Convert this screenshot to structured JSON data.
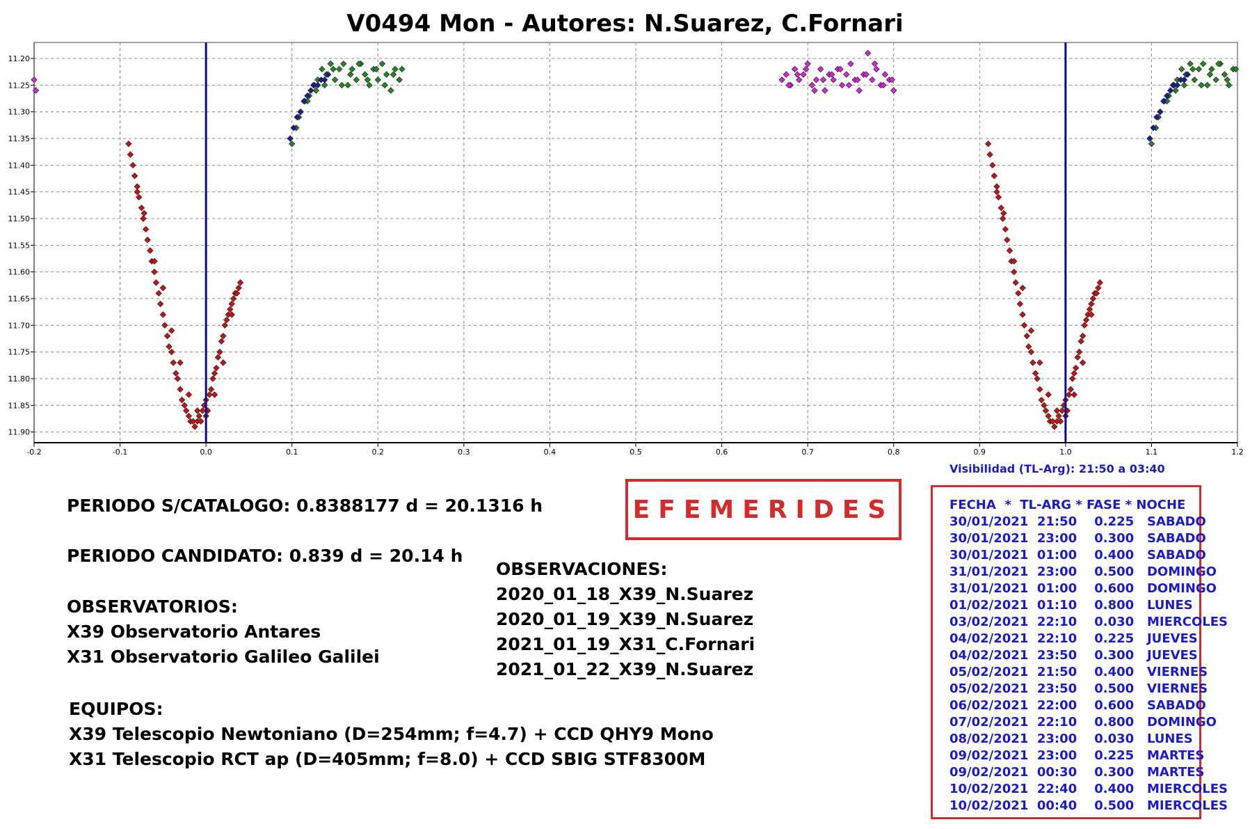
{
  "page": {
    "title": "V0494 Mon - Autores: N.Suarez, C.Fornari",
    "visibility": "Visibilidad (TL-Arg): 21:50 a 03:40",
    "period_catalog": "PERIODO S/CATALOGO: 0.8388177 d = 20.1316 h",
    "period_candidate": "PERIODO CANDIDATO: 0.839 d = 20.14 h",
    "observatories_heading": "OBSERVATORIOS:",
    "observatories": [
      "X39 Observatorio Antares",
      "X31 Observatorio Galileo Galilei"
    ],
    "observations_heading": "OBSERVACIONES:",
    "observations": [
      "2020_01_18_X39_N.Suarez",
      "2020_01_19_X39_N.Suarez",
      "2021_01_19_X31_C.Fornari",
      "2021_01_22_X39_N.Suarez"
    ],
    "equipment_heading": "EQUIPOS:",
    "equipment": [
      "X39 Telescopio Newtoniano (D=254mm; f=4.7) + CCD QHY9 Mono",
      "X31 Telescopio RCT ap (D=405mm; f=8.0) + CCD SBIG STF8300M"
    ],
    "ephemerides_title": "EFEMERIDES",
    "ephemerides_header": "FECHA  *  TL-ARG * FASE * NOCHE",
    "ephemerides": [
      "30/01/2021  21:50    0.225   SABADO",
      "30/01/2021  23:00    0.300   SABADO",
      "30/01/2021  01:00    0.400   SABADO",
      "31/01/2021  23:00    0.500   DOMINGO",
      "31/01/2021  01:00    0.600   DOMINGO",
      "01/02/2021  01:10    0.800   LUNES",
      "03/02/2021  22:10    0.030   MIERCOLES",
      "04/02/2021  22:10    0.225   JUEVES",
      "04/02/2021  23:50    0.300   JUEVES",
      "05/02/2021  21:50    0.400   VIERNES",
      "05/02/2021  23:50    0.500   VIERNES",
      "06/02/2021  22:00    0.600   SABADO",
      "07/02/2021  22:10    0.800   DOMINGO",
      "08/02/2021  23:00    0.030   LUNES",
      "09/02/2021  23:00    0.225   MARTES",
      "09/02/2021  00:30    0.300   MARTES",
      "10/02/2021  22:40    0.400   MIERCOLES",
      "10/02/2021  00:40    0.500   MIERCOLES"
    ]
  },
  "colors": {
    "red_series": "#cc1111",
    "green_series": "#1f8a1f",
    "magenta_series": "#e020e0",
    "blue_series": "#1a1aa0",
    "phase_line": "#0a0a8a",
    "accent_red": "#d62b2b",
    "accent_blue": "#1a1ad0"
  },
  "chart_data": {
    "type": "scatter",
    "title": "V0494 Mon - Autores: N.Suarez, C.Fornari",
    "xlabel": "",
    "ylabel": "",
    "xlim": [
      -0.2,
      1.2
    ],
    "ylim": [
      11.92,
      11.17
    ],
    "y_inverted": true,
    "grid": true,
    "x_ticks": [
      -0.2,
      -0.1,
      0.0,
      0.1,
      0.2,
      0.3,
      0.4,
      0.5,
      0.6,
      0.7,
      0.8,
      0.9,
      1.0,
      1.1,
      1.2
    ],
    "x_tick_labels": [
      "-0.2",
      "-0.1",
      "0.0",
      "0.1",
      "0.2",
      "0.3",
      "0.4",
      "0.5",
      "0.6",
      "0.7",
      "0.8",
      "0.9",
      "1.0",
      "1.1",
      "1.2"
    ],
    "y_ticks": [
      11.2,
      11.25,
      11.3,
      11.35,
      11.4,
      11.45,
      11.5,
      11.55,
      11.6,
      11.65,
      11.7,
      11.75,
      11.8,
      11.85,
      11.9
    ],
    "y_tick_labels": [
      "11.20",
      "11.25",
      "11.30",
      "11.35",
      "11.40",
      "11.45",
      "11.50",
      "11.55",
      "11.60",
      "11.65",
      "11.70",
      "11.75",
      "11.80",
      "11.85",
      "11.90"
    ],
    "vertical_lines": [
      0.0,
      1.0
    ],
    "series": [
      {
        "color": "red",
        "x": [
          -0.09,
          -0.088,
          -0.085,
          -0.083,
          -0.08,
          -0.078,
          -0.075,
          -0.073,
          -0.07,
          -0.068,
          -0.065,
          -0.063,
          -0.06,
          -0.058,
          -0.055,
          -0.053,
          -0.05,
          -0.048,
          -0.045,
          -0.043,
          -0.04,
          -0.038,
          -0.035,
          -0.033,
          -0.03,
          -0.028,
          -0.025,
          -0.023,
          -0.02,
          -0.018,
          -0.015,
          -0.013,
          -0.01,
          -0.008,
          -0.006,
          -0.004,
          -0.002,
          0.0,
          0.002,
          0.004,
          0.006,
          0.008,
          0.01,
          0.012,
          0.014,
          0.016,
          0.018,
          0.02,
          0.022,
          0.024,
          0.026,
          0.028,
          0.03,
          0.032,
          0.034,
          0.036,
          0.038,
          0.04,
          -0.08,
          -0.072,
          -0.06,
          -0.05,
          -0.04,
          -0.03,
          -0.02,
          -0.01,
          0.0,
          0.01,
          0.02,
          0.03
        ],
        "y": [
          11.36,
          11.38,
          11.4,
          11.42,
          11.44,
          11.46,
          11.48,
          11.5,
          11.52,
          11.54,
          11.56,
          11.58,
          11.6,
          11.62,
          11.64,
          11.66,
          11.68,
          11.7,
          11.72,
          11.74,
          11.75,
          11.77,
          11.79,
          11.8,
          11.82,
          11.84,
          11.85,
          11.86,
          11.87,
          11.88,
          11.88,
          11.89,
          11.88,
          11.87,
          11.88,
          11.86,
          11.85,
          11.84,
          11.86,
          11.83,
          11.82,
          11.8,
          11.79,
          11.78,
          11.76,
          11.75,
          11.73,
          11.72,
          11.7,
          11.69,
          11.68,
          11.67,
          11.66,
          11.65,
          11.64,
          11.64,
          11.63,
          11.62,
          11.45,
          11.49,
          11.58,
          11.63,
          11.71,
          11.77,
          11.83,
          11.86,
          11.87,
          11.83,
          11.77,
          11.68
        ]
      },
      {
        "color": "red",
        "x": [
          0.91,
          0.912,
          0.915,
          0.917,
          0.92,
          0.922,
          0.925,
          0.927,
          0.93,
          0.932,
          0.935,
          0.937,
          0.94,
          0.942,
          0.945,
          0.947,
          0.95,
          0.952,
          0.955,
          0.957,
          0.96,
          0.962,
          0.965,
          0.967,
          0.97,
          0.972,
          0.975,
          0.977,
          0.98,
          0.982,
          0.985,
          0.987,
          0.99,
          0.992,
          0.994,
          0.996,
          0.998,
          1.0,
          1.002,
          1.004,
          1.006,
          1.008,
          1.01,
          1.012,
          1.014,
          1.016,
          1.018,
          1.02,
          1.022,
          1.024,
          1.026,
          1.028,
          1.03,
          1.032,
          1.034,
          1.036,
          1.038,
          1.04,
          0.92,
          0.928,
          0.94,
          0.95,
          0.96,
          0.97,
          0.98,
          0.99,
          1.0,
          1.01,
          1.02,
          1.03
        ],
        "y": [
          11.36,
          11.38,
          11.4,
          11.42,
          11.44,
          11.46,
          11.48,
          11.5,
          11.52,
          11.54,
          11.56,
          11.58,
          11.6,
          11.62,
          11.64,
          11.66,
          11.68,
          11.7,
          11.72,
          11.74,
          11.75,
          11.77,
          11.79,
          11.8,
          11.82,
          11.84,
          11.85,
          11.86,
          11.87,
          11.88,
          11.88,
          11.89,
          11.88,
          11.87,
          11.88,
          11.86,
          11.85,
          11.84,
          11.86,
          11.83,
          11.82,
          11.8,
          11.79,
          11.78,
          11.76,
          11.75,
          11.73,
          11.72,
          11.7,
          11.69,
          11.68,
          11.67,
          11.66,
          11.65,
          11.64,
          11.64,
          11.63,
          11.62,
          11.45,
          11.49,
          11.58,
          11.63,
          11.71,
          11.77,
          11.83,
          11.86,
          11.87,
          11.83,
          11.77,
          11.68
        ]
      },
      {
        "color": "green",
        "x": [
          0.1,
          0.105,
          0.11,
          0.115,
          0.12,
          0.125,
          0.13,
          0.135,
          0.14,
          0.145,
          0.15,
          0.155,
          0.16,
          0.165,
          0.17,
          0.175,
          0.18,
          0.185,
          0.19,
          0.195,
          0.2,
          0.205,
          0.21,
          0.215,
          0.22,
          0.225,
          0.108,
          0.118,
          0.128,
          0.138,
          0.148,
          0.158,
          0.168,
          0.178,
          0.188,
          0.198,
          0.208,
          0.218,
          0.228
        ],
        "y": [
          11.36,
          11.33,
          11.3,
          11.28,
          11.27,
          11.25,
          11.24,
          11.22,
          11.23,
          11.21,
          11.24,
          11.22,
          11.21,
          11.25,
          11.22,
          11.24,
          11.21,
          11.23,
          11.25,
          11.22,
          11.24,
          11.21,
          11.23,
          11.26,
          11.22,
          11.24,
          11.31,
          11.28,
          11.26,
          11.25,
          11.22,
          11.25,
          11.23,
          11.21,
          11.24,
          11.22,
          11.25,
          11.23,
          11.22
        ]
      },
      {
        "color": "green",
        "x": [
          1.1,
          1.105,
          1.11,
          1.115,
          1.12,
          1.125,
          1.13,
          1.135,
          1.14,
          1.145,
          1.15,
          1.155,
          1.16,
          1.165,
          1.17,
          1.175,
          1.18,
          1.185,
          1.19,
          1.195,
          1.108,
          1.118,
          1.128,
          1.138,
          1.148,
          1.158,
          1.168,
          1.178,
          1.188,
          1.198
        ],
        "y": [
          11.36,
          11.33,
          11.3,
          11.28,
          11.27,
          11.25,
          11.24,
          11.22,
          11.23,
          11.21,
          11.24,
          11.22,
          11.21,
          11.25,
          11.22,
          11.24,
          11.21,
          11.23,
          11.25,
          11.22,
          11.31,
          11.28,
          11.26,
          11.25,
          11.22,
          11.25,
          11.23,
          11.21,
          11.24,
          11.22
        ]
      },
      {
        "color": "blue",
        "x": [
          0.098,
          0.102,
          0.106,
          0.11,
          0.114,
          0.118,
          0.122,
          0.126,
          0.13,
          0.134,
          0.138,
          0.142,
          1.098,
          1.102,
          1.106,
          1.11,
          1.114,
          1.118,
          1.122,
          1.126,
          1.13,
          1.134,
          1.138,
          1.142
        ],
        "y": [
          11.35,
          11.33,
          11.31,
          11.3,
          11.28,
          11.27,
          11.26,
          11.25,
          11.25,
          11.24,
          11.24,
          11.23,
          11.35,
          11.33,
          11.31,
          11.3,
          11.28,
          11.27,
          11.26,
          11.25,
          11.25,
          11.24,
          11.24,
          11.23
        ]
      },
      {
        "color": "magenta",
        "x": [
          -0.2,
          -0.198,
          0.67,
          0.675,
          0.68,
          0.685,
          0.69,
          0.695,
          0.7,
          0.705,
          0.71,
          0.715,
          0.72,
          0.725,
          0.73,
          0.735,
          0.74,
          0.745,
          0.75,
          0.755,
          0.76,
          0.765,
          0.77,
          0.775,
          0.78,
          0.785,
          0.79,
          0.795,
          0.8,
          0.678,
          0.688,
          0.698,
          0.708,
          0.718,
          0.728,
          0.738,
          0.748,
          0.758,
          0.768,
          0.778,
          0.788,
          0.798
        ],
        "y": [
          11.24,
          11.26,
          11.24,
          11.23,
          11.25,
          11.22,
          11.24,
          11.23,
          11.21,
          11.25,
          11.24,
          11.22,
          11.26,
          11.23,
          11.24,
          11.22,
          11.25,
          11.23,
          11.21,
          11.24,
          11.26,
          11.23,
          11.19,
          11.24,
          11.22,
          11.25,
          11.23,
          11.24,
          11.26,
          11.25,
          11.23,
          11.22,
          11.26,
          11.24,
          11.23,
          11.22,
          11.25,
          11.24,
          11.23,
          11.21,
          11.25,
          11.24
        ]
      }
    ]
  }
}
